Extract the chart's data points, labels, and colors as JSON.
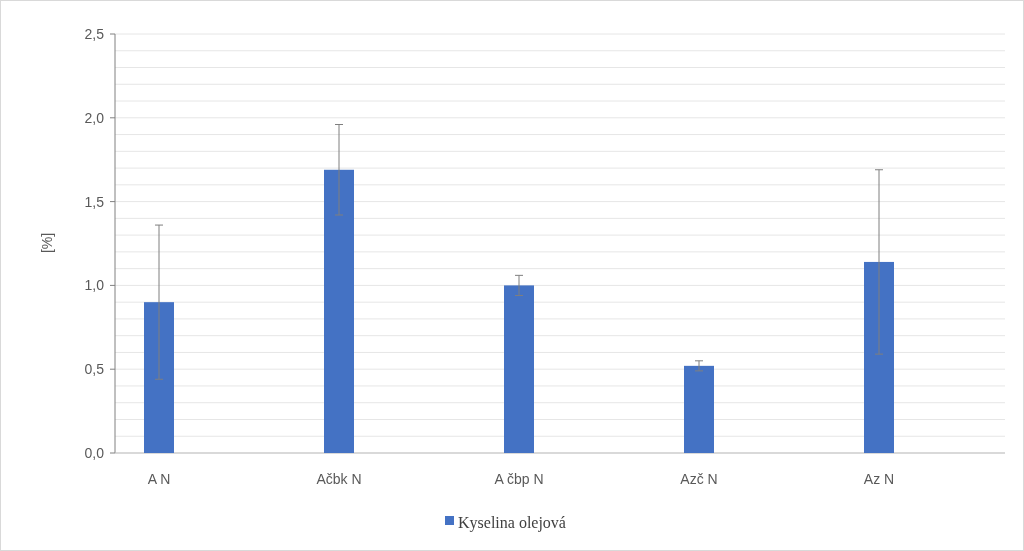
{
  "chart_data": {
    "type": "bar",
    "ylabel": "[%]",
    "categories": [
      "A N",
      "Ačbk N",
      "A čbp N",
      "Azč N",
      "Az N"
    ],
    "series": [
      {
        "name": "Kyselina olejová",
        "color": "#4472c4",
        "values": [
          0.9,
          1.69,
          1.0,
          0.52,
          1.14
        ],
        "errors": [
          0.46,
          0.27,
          0.06,
          0.03,
          0.55
        ]
      }
    ],
    "ylim": [
      0,
      2.5
    ],
    "yticks": [
      {
        "value": 0,
        "label": "0,0"
      },
      {
        "value": 0.1,
        "label": null
      },
      {
        "value": 0.2,
        "label": null
      },
      {
        "value": 0.3,
        "label": null
      },
      {
        "value": 0.4,
        "label": null
      },
      {
        "value": 0.5,
        "label": "0,5"
      },
      {
        "value": 0.6,
        "label": null
      },
      {
        "value": 0.7,
        "label": null
      },
      {
        "value": 0.8,
        "label": null
      },
      {
        "value": 0.9,
        "label": null
      },
      {
        "value": 1.0,
        "label": "1,0"
      },
      {
        "value": 1.1,
        "label": null
      },
      {
        "value": 1.2,
        "label": null
      },
      {
        "value": 1.3,
        "label": null
      },
      {
        "value": 1.4,
        "label": null
      },
      {
        "value": 1.5,
        "label": "1,5"
      },
      {
        "value": 1.6,
        "label": null
      },
      {
        "value": 1.7,
        "label": null
      },
      {
        "value": 1.8,
        "label": null
      },
      {
        "value": 1.9,
        "label": null
      },
      {
        "value": 2.0,
        "label": "2,0"
      },
      {
        "value": 2.1,
        "label": null
      },
      {
        "value": 2.2,
        "label": null
      },
      {
        "value": 2.3,
        "label": null
      },
      {
        "value": 2.4,
        "label": null
      },
      {
        "value": 2.5,
        "label": "2,5"
      }
    ],
    "grid": true,
    "legend": "bottom"
  }
}
